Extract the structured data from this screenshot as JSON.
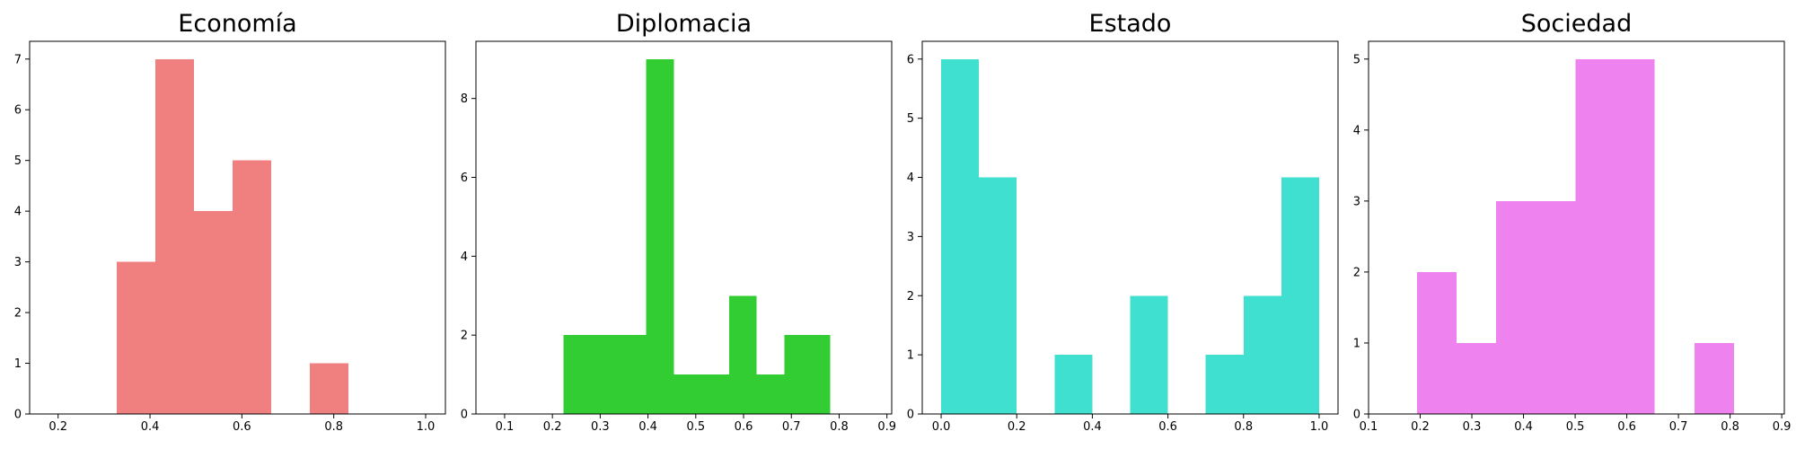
{
  "chart_data": [
    {
      "type": "bar",
      "title": "Economía",
      "color": "#f08080",
      "xlim": [
        0.138,
        1.043
      ],
      "ylim": [
        0,
        7.35
      ],
      "xticks": [
        "0.2",
        "0.4",
        "0.6",
        "0.8",
        "1.0"
      ],
      "yticks": [
        "0",
        "1",
        "2",
        "3",
        "4",
        "5",
        "6",
        "7"
      ],
      "bins": [
        {
          "x0": 0.328,
          "x1": 0.412,
          "count": 3
        },
        {
          "x0": 0.412,
          "x1": 0.496,
          "count": 7
        },
        {
          "x0": 0.496,
          "x1": 0.58,
          "count": 4
        },
        {
          "x0": 0.58,
          "x1": 0.664,
          "count": 5
        },
        {
          "x0": 0.664,
          "x1": 0.748,
          "count": 0
        },
        {
          "x0": 0.748,
          "x1": 0.832,
          "count": 1
        }
      ]
    },
    {
      "type": "bar",
      "title": "Diplomacia",
      "color": "#32cd32",
      "xlim": [
        0.04,
        0.91
      ],
      "ylim": [
        0,
        9.45
      ],
      "xticks": [
        "0.1",
        "0.2",
        "0.3",
        "0.4",
        "0.5",
        "0.6",
        "0.7",
        "0.8",
        "0.9"
      ],
      "yticks": [
        "0",
        "2",
        "4",
        "6",
        "8"
      ],
      "bins": [
        {
          "x0": 0.223,
          "x1": 0.281,
          "count": 2
        },
        {
          "x0": 0.281,
          "x1": 0.338,
          "count": 2
        },
        {
          "x0": 0.338,
          "x1": 0.396,
          "count": 2
        },
        {
          "x0": 0.396,
          "x1": 0.454,
          "count": 9
        },
        {
          "x0": 0.454,
          "x1": 0.512,
          "count": 1
        },
        {
          "x0": 0.512,
          "x1": 0.57,
          "count": 1
        },
        {
          "x0": 0.57,
          "x1": 0.627,
          "count": 3
        },
        {
          "x0": 0.627,
          "x1": 0.685,
          "count": 1
        },
        {
          "x0": 0.685,
          "x1": 0.743,
          "count": 2
        },
        {
          "x0": 0.743,
          "x1": 0.781,
          "count": 2
        }
      ]
    },
    {
      "type": "bar",
      "title": "Estado",
      "color": "#40e0d0",
      "xlim": [
        -0.05,
        1.05
      ],
      "ylim": [
        0,
        6.3
      ],
      "xticks": [
        "0.0",
        "0.2",
        "0.4",
        "0.6",
        "0.8",
        "1.0"
      ],
      "yticks": [
        "0",
        "1",
        "2",
        "3",
        "4",
        "5",
        "6"
      ],
      "bins": [
        {
          "x0": 0.0,
          "x1": 0.1,
          "count": 6
        },
        {
          "x0": 0.1,
          "x1": 0.2,
          "count": 4
        },
        {
          "x0": 0.2,
          "x1": 0.3,
          "count": 0
        },
        {
          "x0": 0.3,
          "x1": 0.4,
          "count": 1
        },
        {
          "x0": 0.4,
          "x1": 0.5,
          "count": 0
        },
        {
          "x0": 0.5,
          "x1": 0.6,
          "count": 2
        },
        {
          "x0": 0.6,
          "x1": 0.7,
          "count": 0
        },
        {
          "x0": 0.7,
          "x1": 0.8,
          "count": 1
        },
        {
          "x0": 0.8,
          "x1": 0.9,
          "count": 2
        },
        {
          "x0": 0.9,
          "x1": 1.0,
          "count": 4
        }
      ]
    },
    {
      "type": "bar",
      "title": "Sociedad",
      "color": "#ee82ee",
      "xlim": [
        0.1,
        0.905
      ],
      "ylim": [
        0,
        5.25
      ],
      "xticks": [
        "0.1",
        "0.2",
        "0.3",
        "0.4",
        "0.5",
        "0.6",
        "0.7",
        "0.8",
        "0.9"
      ],
      "yticks": [
        "0",
        "1",
        "2",
        "3",
        "4",
        "5"
      ],
      "bins": [
        {
          "x0": 0.194,
          "x1": 0.27,
          "count": 2
        },
        {
          "x0": 0.27,
          "x1": 0.347,
          "count": 1
        },
        {
          "x0": 0.347,
          "x1": 0.424,
          "count": 3
        },
        {
          "x0": 0.424,
          "x1": 0.501,
          "count": 3
        },
        {
          "x0": 0.501,
          "x1": 0.577,
          "count": 5
        },
        {
          "x0": 0.577,
          "x1": 0.654,
          "count": 5
        },
        {
          "x0": 0.654,
          "x1": 0.731,
          "count": 0
        },
        {
          "x0": 0.731,
          "x1": 0.808,
          "count": 1
        }
      ]
    }
  ]
}
